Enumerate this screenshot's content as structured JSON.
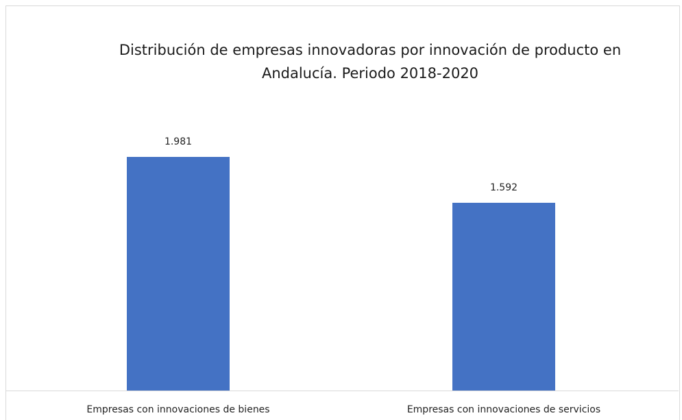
{
  "chart_data": {
    "type": "bar",
    "title": "Distribución de empresas innovadoras por innovación de producto en Andalucía. Periodo 2018-2020",
    "categories": [
      "Empresas con innovaciones de bienes",
      "Empresas con innovaciones de servicios"
    ],
    "values": [
      1981,
      1592
    ],
    "value_labels": [
      "1.981",
      "1.592"
    ],
    "color": "#4472c4"
  }
}
